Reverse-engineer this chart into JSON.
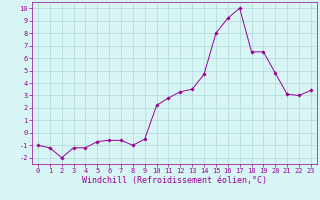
{
  "x": [
    0,
    1,
    2,
    3,
    4,
    5,
    6,
    7,
    8,
    9,
    10,
    11,
    12,
    13,
    14,
    15,
    16,
    17,
    18,
    19,
    20,
    21,
    22,
    23
  ],
  "y": [
    -1.0,
    -1.2,
    -2.0,
    -1.2,
    -1.2,
    -0.7,
    -0.6,
    -0.6,
    -1.0,
    -0.5,
    2.2,
    2.8,
    3.3,
    3.5,
    4.7,
    8.0,
    9.2,
    10.0,
    6.5,
    6.5,
    4.8,
    3.1,
    3.0,
    3.4
  ],
  "xlim": [
    -0.5,
    23.5
  ],
  "ylim": [
    -2.5,
    10.5
  ],
  "yticks": [
    -2,
    -1,
    0,
    1,
    2,
    3,
    4,
    5,
    6,
    7,
    8,
    9,
    10
  ],
  "xticks": [
    0,
    1,
    2,
    3,
    4,
    5,
    6,
    7,
    8,
    9,
    10,
    11,
    12,
    13,
    14,
    15,
    16,
    17,
    18,
    19,
    20,
    21,
    22,
    23
  ],
  "xlabel": "Windchill (Refroidissement éolien,°C)",
  "line_color": "#990099",
  "marker": "D",
  "marker_size": 1.8,
  "bg_color": "#d8f5f5",
  "grid_color": "#b0d8d8",
  "tick_label_fontsize": 5.0,
  "xlabel_fontsize": 6.0
}
